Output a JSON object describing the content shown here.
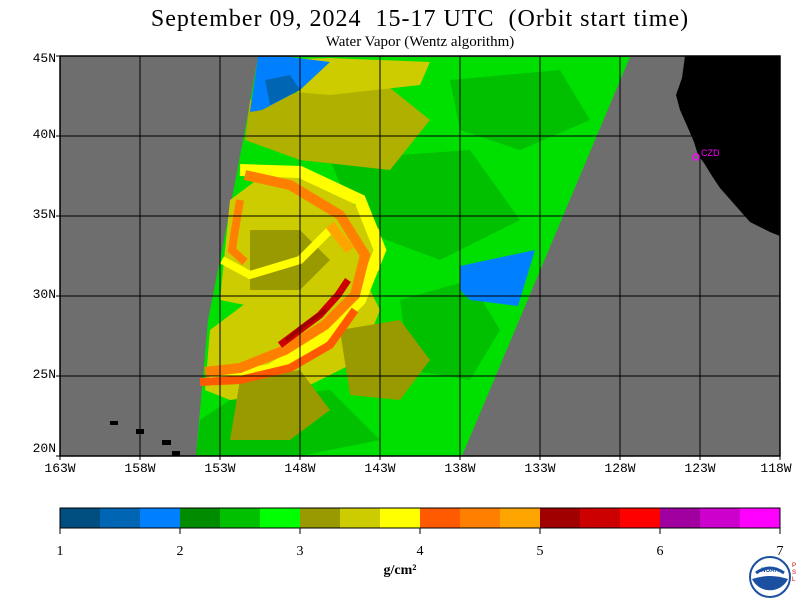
{
  "header": {
    "title": "September 09, 2024  15-17 UTC  (Orbit start time)",
    "subtitle": "Water Vapor (Wentz algorithm)"
  },
  "map": {
    "lat_ticks": [
      "45N",
      "40N",
      "35N",
      "30N",
      "25N",
      "20N"
    ],
    "lon_ticks": [
      "163W",
      "158W",
      "153W",
      "148W",
      "143W",
      "138W",
      "133W",
      "128W",
      "123W",
      "118W"
    ],
    "lat_values": [
      45,
      40,
      35,
      30,
      25,
      20
    ],
    "lon_values": [
      -163,
      -158,
      -153,
      -148,
      -143,
      -138,
      -133,
      -128,
      -123,
      -118
    ],
    "station_label": "CZD",
    "colors": {
      "no_data": "#6e6e6e",
      "land": "#000000",
      "grid": "#000000",
      "station": "#ff00ff"
    }
  },
  "colorbar": {
    "ticks": [
      "1",
      "2",
      "3",
      "4",
      "5",
      "6",
      "7"
    ],
    "units": "g/cm²",
    "colors": [
      "#004d80",
      "#0066b3",
      "#0080ff",
      "#008c00",
      "#00c000",
      "#00ff00",
      "#999900",
      "#cccc00",
      "#ffff00",
      "#ff5a00",
      "#ff8000",
      "#ffa500",
      "#a00000",
      "#cc0000",
      "#ff0000",
      "#a000a0",
      "#cc00cc",
      "#ff00ff"
    ]
  },
  "logo": {
    "text": "NOAA",
    "side_text": "PSL"
  }
}
